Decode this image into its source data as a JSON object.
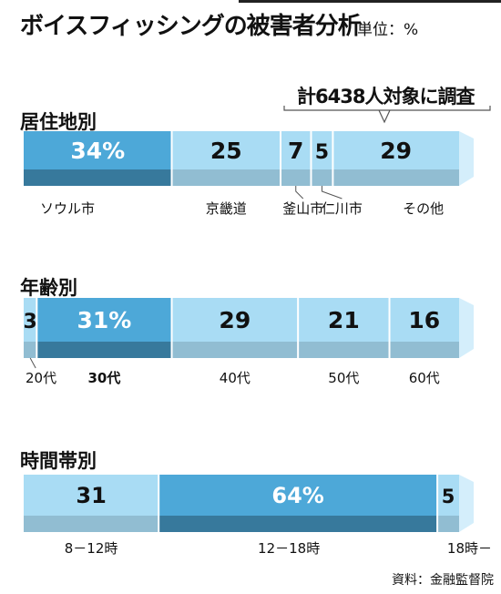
{
  "title": "ボイスフィッシングの被害者分析",
  "unit_label": "単位：%",
  "note": "計6438人対象に調査",
  "source": "資料：金融監督院",
  "colors": {
    "highlight": "#4da8d8",
    "light": "#a9dcf4",
    "lightest": "#d4eefb"
  },
  "chart_data": [
    {
      "type": "bar",
      "title": "居住地別",
      "categories": [
        "ソウル市",
        "京畿道",
        "釜山市",
        "仁川市",
        "その他"
      ],
      "values": [
        34,
        25,
        7,
        5,
        29
      ],
      "value_labels": [
        "34%",
        "25",
        "7",
        "5",
        "29"
      ],
      "highlight": 0,
      "stacked": true
    },
    {
      "type": "bar",
      "title": "年齢別",
      "categories": [
        "20代",
        "30代",
        "40代",
        "50代",
        "60代"
      ],
      "values": [
        3,
        31,
        29,
        21,
        16
      ],
      "value_labels": [
        "3",
        "31%",
        "29",
        "21",
        "16"
      ],
      "highlight": 1,
      "stacked": true
    },
    {
      "type": "bar",
      "title": "時間帯別",
      "categories": [
        "8－12時",
        "12－18時",
        "18時－"
      ],
      "values": [
        31,
        64,
        5
      ],
      "value_labels": [
        "31",
        "64%",
        "5"
      ],
      "highlight": 1,
      "stacked": true
    }
  ]
}
